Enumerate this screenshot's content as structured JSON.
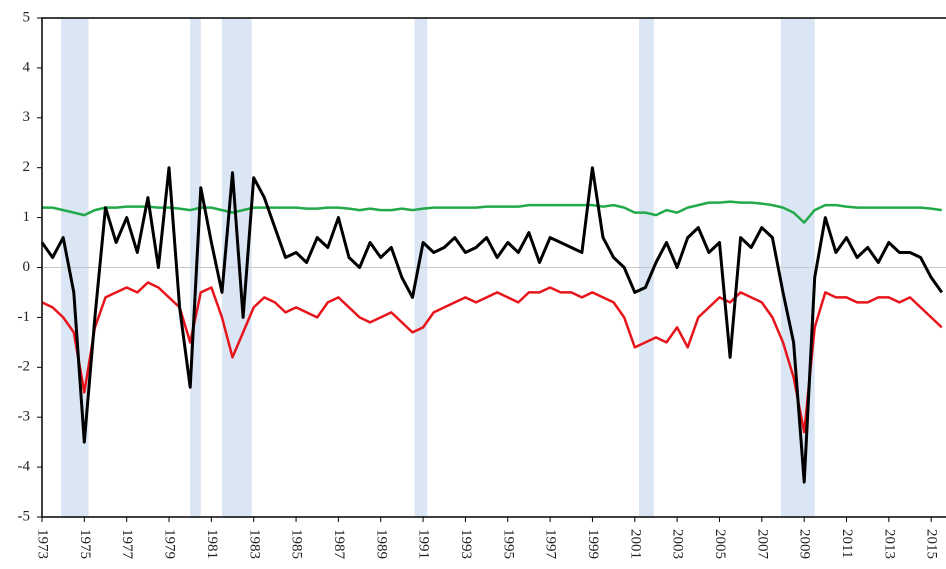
{
  "chart_data": {
    "type": "line",
    "x": [
      1973.0,
      1973.5,
      1974.0,
      1974.5,
      1975.0,
      1975.5,
      1976.0,
      1976.5,
      1977.0,
      1977.5,
      1978.0,
      1978.5,
      1979.0,
      1979.5,
      1980.0,
      1980.5,
      1981.0,
      1981.5,
      1982.0,
      1982.5,
      1983.0,
      1983.5,
      1984.0,
      1984.5,
      1985.0,
      1985.5,
      1986.0,
      1986.5,
      1987.0,
      1987.5,
      1988.0,
      1988.5,
      1989.0,
      1989.5,
      1990.0,
      1990.5,
      1991.0,
      1991.5,
      1992.0,
      1992.5,
      1993.0,
      1993.5,
      1994.0,
      1994.5,
      1995.0,
      1995.5,
      1996.0,
      1996.5,
      1997.0,
      1997.5,
      1998.0,
      1998.5,
      1999.0,
      1999.5,
      2000.0,
      2000.5,
      2001.0,
      2001.5,
      2002.0,
      2002.5,
      2003.0,
      2003.5,
      2004.0,
      2004.5,
      2005.0,
      2005.5,
      2006.0,
      2006.5,
      2007.0,
      2007.5,
      2008.0,
      2008.5,
      2009.0,
      2009.5,
      2010.0,
      2010.5,
      2011.0,
      2011.5,
      2012.0,
      2012.5,
      2013.0,
      2013.5,
      2014.0,
      2014.5,
      2015.0,
      2015.5
    ],
    "series": [
      {
        "color": "#22a94a",
        "values": [
          1.2,
          1.2,
          1.15,
          1.1,
          1.05,
          1.15,
          1.2,
          1.2,
          1.22,
          1.22,
          1.22,
          1.2,
          1.2,
          1.18,
          1.15,
          1.2,
          1.2,
          1.15,
          1.1,
          1.15,
          1.2,
          1.2,
          1.2,
          1.2,
          1.2,
          1.18,
          1.18,
          1.2,
          1.2,
          1.18,
          1.15,
          1.18,
          1.15,
          1.15,
          1.18,
          1.15,
          1.18,
          1.2,
          1.2,
          1.2,
          1.2,
          1.2,
          1.22,
          1.22,
          1.22,
          1.22,
          1.25,
          1.25,
          1.25,
          1.25,
          1.25,
          1.25,
          1.25,
          1.22,
          1.25,
          1.2,
          1.1,
          1.1,
          1.05,
          1.15,
          1.1,
          1.2,
          1.25,
          1.3,
          1.3,
          1.32,
          1.3,
          1.3,
          1.28,
          1.25,
          1.2,
          1.1,
          0.9,
          1.15,
          1.25,
          1.25,
          1.22,
          1.2,
          1.2,
          1.2,
          1.2,
          1.2,
          1.2,
          1.2,
          1.18,
          1.15
        ]
      },
      {
        "color": "#e8141b",
        "values": [
          -0.7,
          -0.8,
          -1.0,
          -1.3,
          -2.5,
          -1.2,
          -0.6,
          -0.5,
          -0.4,
          -0.5,
          -0.3,
          -0.4,
          -0.6,
          -0.8,
          -1.5,
          -0.5,
          -0.4,
          -1.0,
          -1.8,
          -1.3,
          -0.8,
          -0.6,
          -0.7,
          -0.9,
          -0.8,
          -0.9,
          -1.0,
          -0.7,
          -0.6,
          -0.8,
          -1.0,
          -1.1,
          -1.0,
          -0.9,
          -1.1,
          -1.3,
          -1.2,
          -0.9,
          -0.8,
          -0.7,
          -0.6,
          -0.7,
          -0.6,
          -0.5,
          -0.6,
          -0.7,
          -0.5,
          -0.5,
          -0.4,
          -0.5,
          -0.5,
          -0.6,
          -0.5,
          -0.6,
          -0.7,
          -1.0,
          -1.6,
          -1.5,
          -1.4,
          -1.5,
          -1.2,
          -1.6,
          -1.0,
          -0.8,
          -0.6,
          -0.7,
          -0.5,
          -0.6,
          -0.7,
          -1.0,
          -1.5,
          -2.2,
          -3.3,
          -1.2,
          -0.5,
          -0.6,
          -0.6,
          -0.7,
          -0.7,
          -0.6,
          -0.6,
          -0.7,
          -0.6,
          -0.8,
          -1.0,
          -1.2
        ]
      },
      {
        "color": "#000000",
        "values": [
          0.5,
          0.2,
          0.6,
          -0.5,
          -3.5,
          -1.0,
          1.2,
          0.5,
          1.0,
          0.3,
          1.4,
          0.0,
          2.0,
          -0.8,
          -2.4,
          1.6,
          0.5,
          -0.5,
          1.9,
          -1.0,
          1.8,
          1.4,
          0.8,
          0.2,
          0.3,
          0.1,
          0.6,
          0.4,
          1.0,
          0.2,
          0.0,
          0.5,
          0.2,
          0.4,
          -0.2,
          -0.6,
          0.5,
          0.3,
          0.4,
          0.6,
          0.3,
          0.4,
          0.6,
          0.2,
          0.5,
          0.3,
          0.7,
          0.1,
          0.6,
          0.5,
          0.4,
          0.3,
          2.0,
          0.6,
          0.2,
          0.0,
          -0.5,
          -0.4,
          0.1,
          0.5,
          0.0,
          0.6,
          0.8,
          0.3,
          0.5,
          -1.8,
          0.6,
          0.4,
          0.8,
          0.6,
          -0.5,
          -1.5,
          -4.3,
          -0.2,
          1.0,
          0.3,
          0.6,
          0.2,
          0.4,
          0.1,
          0.5,
          0.3,
          0.3,
          0.2,
          -0.2,
          -0.5
        ]
      }
    ],
    "shaded_periods": [
      [
        1973.9,
        1975.2
      ],
      [
        1980.0,
        1980.5
      ],
      [
        1981.5,
        1982.9
      ],
      [
        1990.6,
        1991.2
      ],
      [
        2001.2,
        2001.9
      ],
      [
        2007.9,
        2009.5
      ]
    ],
    "shade_color": "#dae6f4",
    "xlim": [
      1973,
      2015.7
    ],
    "xticks": [
      1973,
      1975,
      1977,
      1979,
      1981,
      1983,
      1985,
      1987,
      1989,
      1991,
      1993,
      1995,
      1997,
      1999,
      2001,
      2003,
      2005,
      2007,
      2009,
      2011,
      2013,
      2015
    ],
    "ylim": [
      -5,
      5
    ],
    "yticks": [
      -5,
      -4,
      -3,
      -2,
      -1,
      0,
      1,
      2,
      3,
      4,
      5
    ]
  }
}
